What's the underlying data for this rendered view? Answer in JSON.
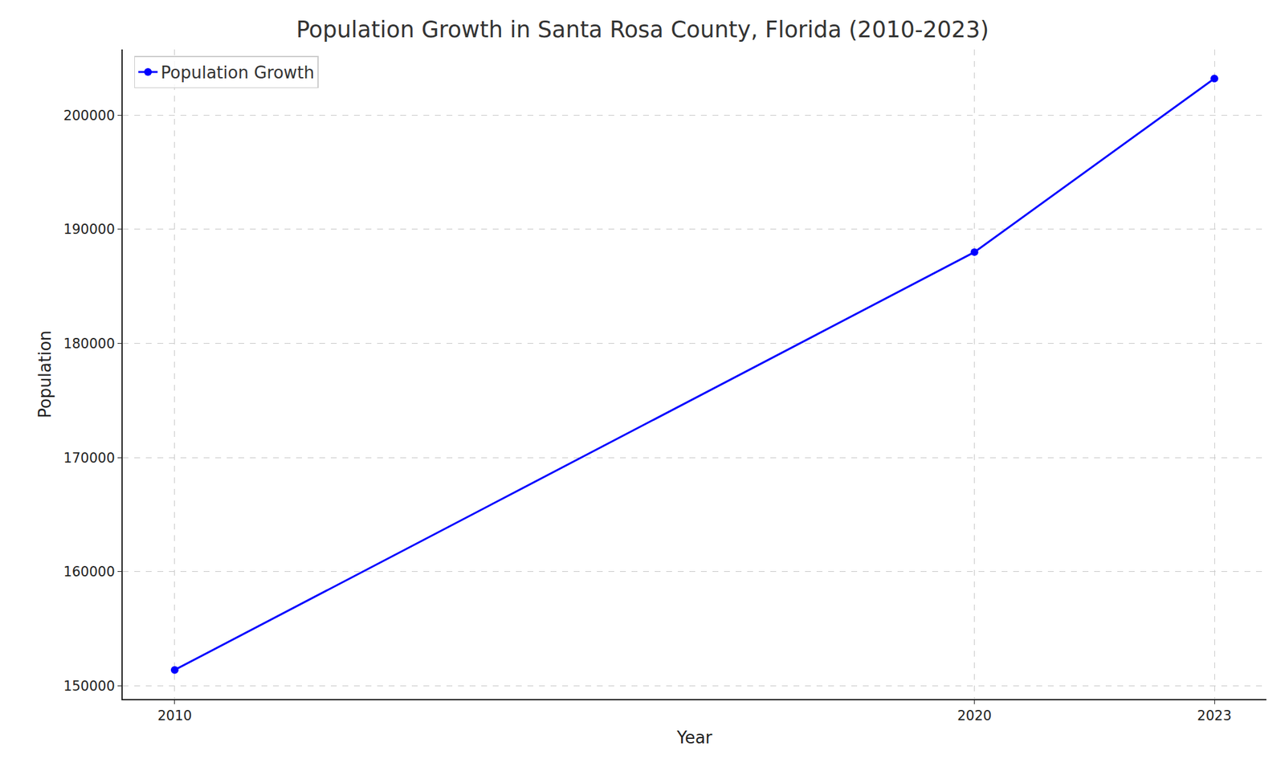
{
  "chart_data": {
    "type": "line",
    "title": "Population Growth in Santa Rosa County, Florida (2010-2023)",
    "x_label": "Year",
    "y_label": "Population",
    "x": [
      2010,
      2020,
      2023
    ],
    "series": [
      {
        "name": "Population Growth",
        "color": "#0000ff",
        "values": [
          151400,
          188000,
          203200
        ],
        "marker": "circle",
        "line_style": "solid"
      }
    ],
    "xlim": [
      2009.35,
      2023.65
    ],
    "xticks": [
      2010,
      2020,
      2023
    ],
    "ylim": [
      148850,
      205750
    ],
    "yticks": [
      150000,
      160000,
      170000,
      180000,
      190000,
      200000
    ],
    "grid": true,
    "legend": "upper left"
  }
}
